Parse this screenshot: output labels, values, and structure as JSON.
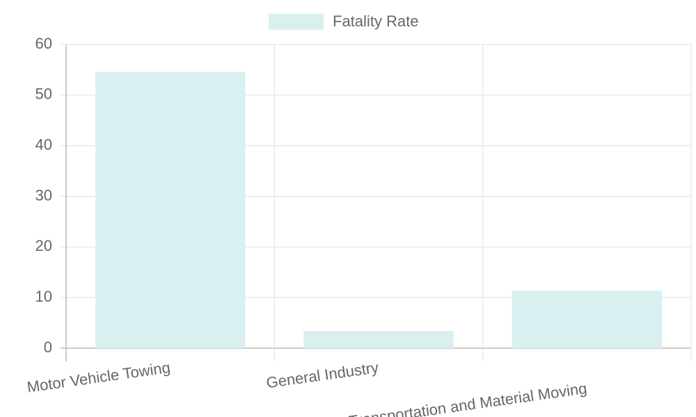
{
  "chart_data": {
    "type": "bar",
    "categories": [
      "Motor Vehicle Towing",
      "General Industry",
      "Transportation and Material Moving"
    ],
    "series": [
      {
        "name": "Fatality Rate",
        "color": "#daf0f0",
        "values": [
          54.6,
          3.4,
          11.4
        ]
      }
    ],
    "ylim": [
      0,
      60
    ],
    "yticks": [
      0,
      10,
      20,
      30,
      40,
      50,
      60
    ],
    "grid": true,
    "legend": "top"
  }
}
